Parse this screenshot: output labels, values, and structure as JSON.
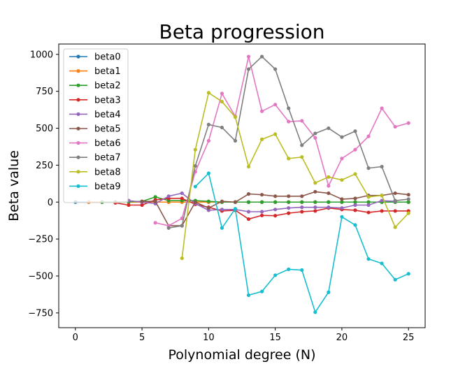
{
  "chart_data": {
    "type": "line",
    "title": "Beta progression",
    "xlabel": "Polynomial degree (N)",
    "ylabel": "Beta value",
    "xlim": [
      -1.25,
      26.25
    ],
    "ylim": [
      -850,
      1070
    ],
    "x_ticks": [
      0,
      5,
      10,
      15,
      20,
      25
    ],
    "x_tick_labels": [
      "0",
      "5",
      "10",
      "15",
      "20",
      "25"
    ],
    "y_ticks": [
      -750,
      -500,
      -250,
      0,
      250,
      500,
      750,
      1000
    ],
    "y_tick_labels": [
      "−750",
      "−500",
      "−250",
      "0",
      "250",
      "500",
      "750",
      "1000"
    ],
    "grid": false,
    "legend_position": "top-left",
    "series": [
      {
        "name": "beta0",
        "color": "#1f77b4",
        "start": 0,
        "values": [
          0,
          0,
          0,
          0,
          0,
          0,
          0,
          0,
          0,
          0,
          0,
          0,
          0,
          0,
          0,
          0,
          0,
          0,
          0,
          0,
          0,
          0,
          0,
          0,
          0,
          0
        ]
      },
      {
        "name": "beta1",
        "color": "#ff7f0e",
        "start": 1,
        "values": [
          0,
          0,
          0,
          0,
          0,
          0,
          0,
          0,
          0,
          0,
          0,
          0,
          0,
          0,
          0,
          0,
          0,
          0,
          0,
          0,
          0,
          0,
          0,
          0,
          0
        ]
      },
      {
        "name": "beta2",
        "color": "#2ca02c",
        "start": 2,
        "values": [
          0,
          0,
          2,
          5,
          35,
          10,
          10,
          10,
          5,
          0,
          0,
          0,
          0,
          0,
          0,
          0,
          0,
          0,
          0,
          0,
          0,
          0,
          0,
          0
        ]
      },
      {
        "name": "beta3",
        "color": "#d62728",
        "start": 3,
        "values": [
          -5,
          -20,
          -20,
          15,
          25,
          25,
          -15,
          -35,
          -60,
          -55,
          -115,
          -90,
          -92,
          -75,
          -65,
          -60,
          -40,
          -50,
          -55,
          -70,
          -60,
          -60,
          -60
        ]
      },
      {
        "name": "beta4",
        "color": "#9467bd",
        "start": 4,
        "values": [
          10,
          0,
          -10,
          40,
          60,
          -10,
          -55,
          -50,
          -50,
          -65,
          -65,
          -50,
          -40,
          -35,
          -35,
          -35,
          -40,
          -20,
          -20,
          10,
          5
        ]
      },
      {
        "name": "beta5",
        "color": "#8c564b",
        "start": 5,
        "values": [
          5,
          5,
          -160,
          -160,
          0,
          -40,
          5,
          0,
          55,
          50,
          40,
          40,
          40,
          70,
          60,
          20,
          25,
          45,
          45,
          60,
          50
        ]
      },
      {
        "name": "beta6",
        "color": "#e377c2",
        "start": 6,
        "values": [
          -140,
          -160,
          -110,
          205,
          415,
          735,
          580,
          985,
          615,
          660,
          545,
          550,
          435,
          110,
          295,
          355,
          445,
          635,
          510,
          535
        ]
      },
      {
        "name": "beta7",
        "color": "#7f7f7f",
        "start": 7,
        "values": [
          -175,
          -160,
          245,
          525,
          505,
          415,
          900,
          985,
          900,
          635,
          385,
          465,
          500,
          440,
          480,
          230,
          240,
          10,
          20
        ]
      },
      {
        "name": "beta8",
        "color": "#bcbd22",
        "start": 8,
        "values": [
          -380,
          355,
          740,
          680,
          575,
          240,
          425,
          460,
          295,
          305,
          130,
          170,
          150,
          190,
          35,
          45,
          -170,
          -75
        ]
      },
      {
        "name": "beta9",
        "color": "#17becf",
        "start": 9,
        "values": [
          105,
          195,
          -175,
          -45,
          -630,
          -605,
          -495,
          -455,
          -460,
          -745,
          -610,
          -100,
          -155,
          -385,
          -415,
          -525,
          -485
        ]
      }
    ]
  }
}
